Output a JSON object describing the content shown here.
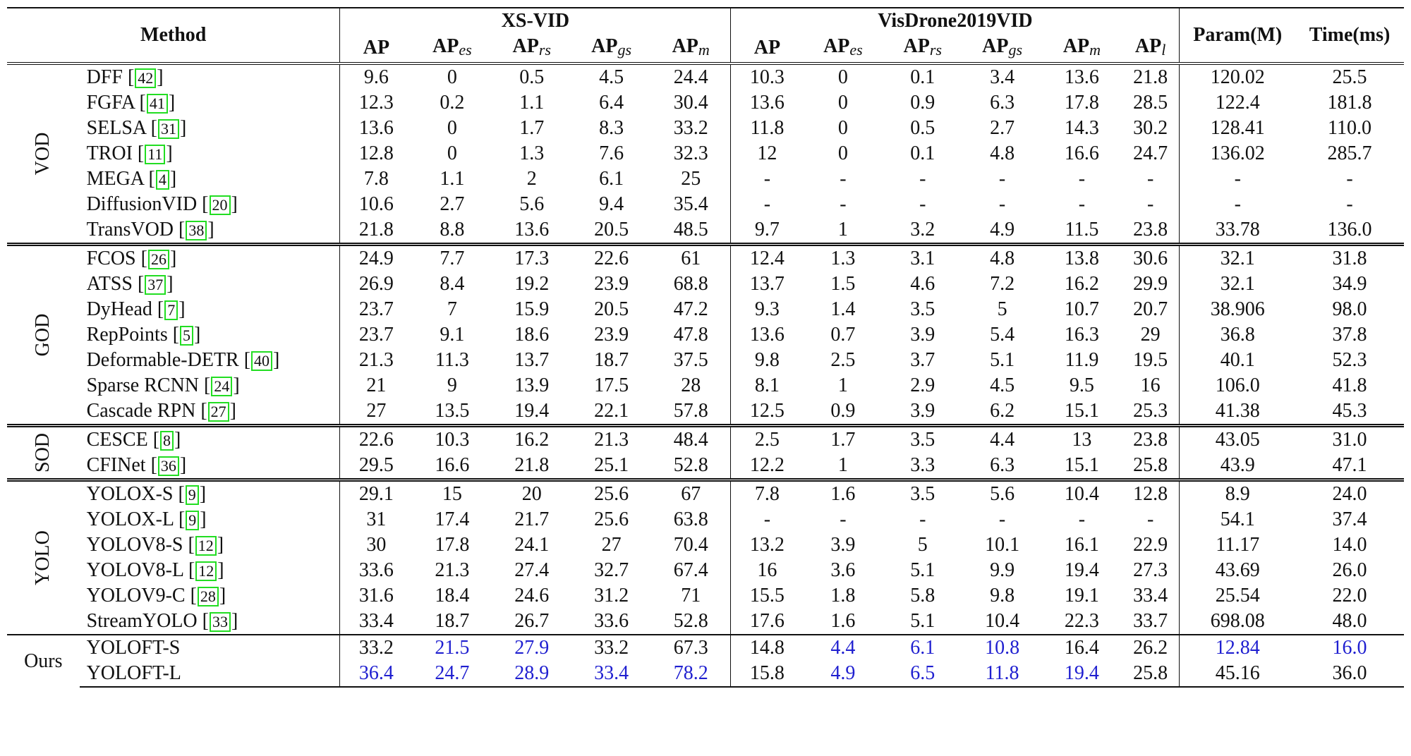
{
  "header": {
    "method": "Method",
    "xsvid": "XS-VID",
    "visdrone": "VisDrone2019VID",
    "param": "Param(M)",
    "time": "Time(ms)",
    "xs_cols": [
      {
        "base": "AP",
        "sub": ""
      },
      {
        "base": "AP",
        "sub": "es"
      },
      {
        "base": "AP",
        "sub": "rs"
      },
      {
        "base": "AP",
        "sub": "gs"
      },
      {
        "base": "AP",
        "sub": "m"
      }
    ],
    "vd_cols": [
      {
        "base": "AP",
        "sub": ""
      },
      {
        "base": "AP",
        "sub": "es"
      },
      {
        "base": "AP",
        "sub": "rs"
      },
      {
        "base": "AP",
        "sub": "gs"
      },
      {
        "base": "AP",
        "sub": "m"
      },
      {
        "base": "AP",
        "sub": "l"
      }
    ]
  },
  "groups": [
    {
      "label": "VOD",
      "rows": [
        {
          "method": "DFF",
          "ref": "42",
          "values": [
            "9.6",
            "0",
            "0.5",
            "4.5",
            "24.4",
            "10.3",
            "0",
            "0.1",
            "3.4",
            "13.6",
            "21.8",
            "120.02",
            "25.5"
          ]
        },
        {
          "method": "FGFA",
          "ref": "41",
          "values": [
            "12.3",
            "0.2",
            "1.1",
            "6.4",
            "30.4",
            "13.6",
            "0",
            "0.9",
            "6.3",
            "17.8",
            "28.5",
            "122.4",
            "181.8"
          ]
        },
        {
          "method": "SELSA",
          "ref": "31",
          "values": [
            "13.6",
            "0",
            "1.7",
            "8.3",
            "33.2",
            "11.8",
            "0",
            "0.5",
            "2.7",
            "14.3",
            "30.2",
            "128.41",
            "110.0"
          ]
        },
        {
          "method": "TROI",
          "ref": "11",
          "values": [
            "12.8",
            "0",
            "1.3",
            "7.6",
            "32.3",
            "12",
            "0",
            "0.1",
            "4.8",
            "16.6",
            "24.7",
            "136.02",
            "285.7"
          ]
        },
        {
          "method": "MEGA",
          "ref": "4",
          "values": [
            "7.8",
            "1.1",
            "2",
            "6.1",
            "25",
            "-",
            "-",
            "-",
            "-",
            "-",
            "-",
            "-",
            "-"
          ]
        },
        {
          "method": "DiffusionVID",
          "ref": "20",
          "values": [
            "10.6",
            "2.7",
            "5.6",
            "9.4",
            "35.4",
            "-",
            "-",
            "-",
            "-",
            "-",
            "-",
            "-",
            "-"
          ]
        },
        {
          "method": "TransVOD",
          "ref": "38",
          "values": [
            "21.8",
            "8.8",
            "13.6",
            "20.5",
            "48.5",
            "9.7",
            "1",
            "3.2",
            "4.9",
            "11.5",
            "23.8",
            "33.78",
            "136.0"
          ]
        }
      ]
    },
    {
      "label": "GOD",
      "rows": [
        {
          "method": "FCOS",
          "ref": "26",
          "values": [
            "24.9",
            "7.7",
            "17.3",
            "22.6",
            "61",
            "12.4",
            "1.3",
            "3.1",
            "4.8",
            "13.8",
            "30.6",
            "32.1",
            "31.8"
          ]
        },
        {
          "method": "ATSS",
          "ref": "37",
          "values": [
            "26.9",
            "8.4",
            "19.2",
            "23.9",
            "68.8",
            "13.7",
            "1.5",
            "4.6",
            "7.2",
            "16.2",
            "29.9",
            "32.1",
            "34.9"
          ]
        },
        {
          "method": "DyHead",
          "ref": "7",
          "values": [
            "23.7",
            "7",
            "15.9",
            "20.5",
            "47.2",
            "9.3",
            "1.4",
            "3.5",
            "5",
            "10.7",
            "20.7",
            "38.906",
            "98.0"
          ]
        },
        {
          "method": "RepPoints",
          "ref": "5",
          "values": [
            "23.7",
            "9.1",
            "18.6",
            "23.9",
            "47.8",
            "13.6",
            "0.7",
            "3.9",
            "5.4",
            "16.3",
            "29",
            "36.8",
            "37.8"
          ]
        },
        {
          "method": "Deformable-DETR",
          "ref": "40",
          "values": [
            "21.3",
            "11.3",
            "13.7",
            "18.7",
            "37.5",
            "9.8",
            "2.5",
            "3.7",
            "5.1",
            "11.9",
            "19.5",
            "40.1",
            "52.3"
          ]
        },
        {
          "method": "Sparse RCNN",
          "ref": "24",
          "values": [
            "21",
            "9",
            "13.9",
            "17.5",
            "28",
            "8.1",
            "1",
            "2.9",
            "4.5",
            "9.5",
            "16",
            "106.0",
            "41.8"
          ]
        },
        {
          "method": "Cascade RPN",
          "ref": "27",
          "values": [
            "27",
            "13.5",
            "19.4",
            "22.1",
            "57.8",
            "12.5",
            "0.9",
            "3.9",
            "6.2",
            "15.1",
            "25.3",
            "41.38",
            "45.3"
          ]
        }
      ]
    },
    {
      "label": "SOD",
      "rows": [
        {
          "method": "CESCE",
          "ref": "8",
          "values": [
            "22.6",
            "10.3",
            "16.2",
            "21.3",
            "48.4",
            "2.5",
            "1.7",
            "3.5",
            "4.4",
            "13",
            "23.8",
            "43.05",
            "31.0"
          ]
        },
        {
          "method": "CFINet",
          "ref": "36",
          "values": [
            "29.5",
            "16.6",
            "21.8",
            "25.1",
            "52.8",
            "12.2",
            "1",
            "3.3",
            "6.3",
            "15.1",
            "25.8",
            "43.9",
            "47.1"
          ]
        }
      ]
    },
    {
      "label": "YOLO",
      "rows": [
        {
          "method": "YOLOX-S",
          "ref": "9",
          "values": [
            "29.1",
            "15",
            "20",
            "25.6",
            "67",
            "7.8",
            "1.6",
            "3.5",
            "5.6",
            "10.4",
            "12.8",
            "8.9",
            "24.0"
          ],
          "bold": [
            11
          ]
        },
        {
          "method": "YOLOX-L",
          "ref": "9",
          "values": [
            "31",
            "17.4",
            "21.7",
            "25.6",
            "63.8",
            "-",
            "-",
            "-",
            "-",
            "-",
            "-",
            "54.1",
            "37.4"
          ]
        },
        {
          "method": "YOLOV8-S",
          "ref": "12",
          "values": [
            "30",
            "17.8",
            "24.1",
            "27",
            "70.4",
            "13.2",
            "3.9",
            "5",
            "10.1",
            "16.1",
            "22.9",
            "11.17",
            "14.0"
          ]
        },
        {
          "method": "YOLOV8-L",
          "ref": "12",
          "values": [
            "33.6",
            "21.3",
            "27.4",
            "32.7",
            "67.4",
            "16",
            "3.6",
            "5.1",
            "9.9",
            "19.4",
            "27.3",
            "43.69",
            "26.0"
          ],
          "bold": [
            0,
            5,
            9
          ]
        },
        {
          "method": "YOLOV9-C",
          "ref": "28",
          "values": [
            "31.6",
            "18.4",
            "24.6",
            "31.2",
            "71",
            "15.5",
            "1.8",
            "5.8",
            "9.8",
            "19.1",
            "33.4",
            "25.54",
            "22.0"
          ],
          "bold": [
            4,
            10,
            12
          ]
        },
        {
          "method": "StreamYOLO",
          "ref": "33",
          "values": [
            "33.4",
            "18.7",
            "26.7",
            "33.6",
            "52.8",
            "17.6",
            "1.6",
            "5.1",
            "10.4",
            "22.3",
            "33.7",
            "698.08",
            "48.0"
          ],
          "bold": [
            3,
            5,
            9,
            10
          ]
        }
      ]
    },
    {
      "label": "Ours",
      "flat": true,
      "rows": [
        {
          "method": "YOLOFT-S",
          "ref": "",
          "values": [
            "33.2",
            "21.5",
            "27.9",
            "33.2",
            "67.3",
            "14.8",
            "4.4",
            "6.1",
            "10.8",
            "16.4",
            "26.2",
            "12.84",
            "16.0"
          ],
          "blue": [
            1,
            2,
            6,
            7,
            8,
            11,
            12
          ]
        },
        {
          "method": "YOLOFT-L",
          "ref": "",
          "values": [
            "36.4",
            "24.7",
            "28.9",
            "33.4",
            "78.2",
            "15.8",
            "4.9",
            "6.5",
            "11.8",
            "19.4",
            "25.8",
            "45.16",
            "36.0"
          ],
          "blue": [
            0,
            1,
            2,
            3,
            4,
            6,
            7,
            8,
            9
          ]
        }
      ]
    }
  ]
}
